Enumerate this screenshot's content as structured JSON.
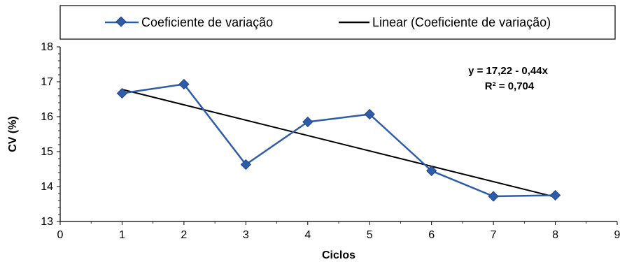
{
  "chart_data": {
    "type": "line",
    "xlabel": "Ciclos",
    "ylabel": "CV (%)",
    "xlim": [
      0,
      9
    ],
    "ylim": [
      13,
      18
    ],
    "x_ticks": [
      0,
      1,
      2,
      3,
      4,
      5,
      6,
      7,
      8,
      9
    ],
    "y_ticks": [
      13,
      14,
      15,
      16,
      17,
      18
    ],
    "grid": false,
    "legend_position": "top",
    "series": [
      {
        "name": "Coeficiente de variação",
        "color": "#2E5CA8",
        "marker": "diamond",
        "x": [
          1,
          2,
          3,
          4,
          5,
          6,
          7,
          8
        ],
        "y": [
          16.67,
          16.93,
          14.63,
          15.85,
          16.07,
          14.45,
          13.72,
          13.75
        ]
      }
    ],
    "trendline": {
      "name": "Linear (Coeficiente de variação)",
      "color": "#000000",
      "intercept": 17.22,
      "slope": -0.44,
      "x_range": [
        1,
        8
      ],
      "equation": "y = 17,22  - 0,44x",
      "r_squared": "R² = 0,704"
    }
  }
}
